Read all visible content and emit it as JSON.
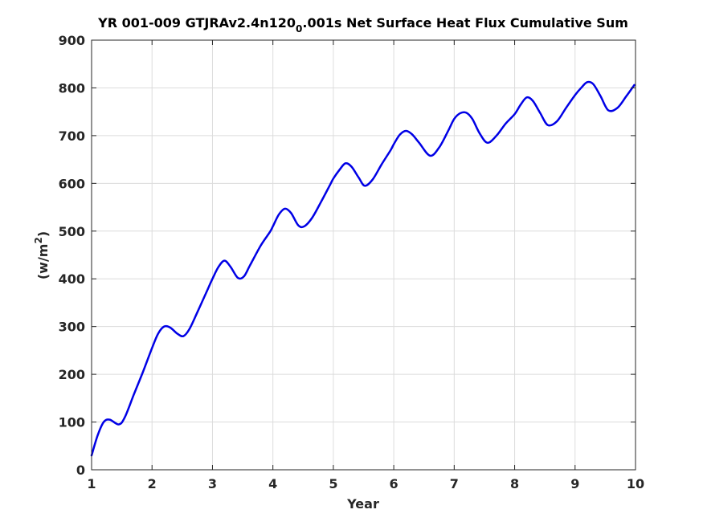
{
  "chart_data": {
    "type": "line",
    "title_main": "YR 001-009 GTJRAv2.4n120",
    "title_subscript": "0",
    "title_rest": ".001s Net Surface Heat Flux  Cumulative Sum",
    "xlabel": "Year",
    "ylabel_main": "(w/m",
    "ylabel_sup": "2",
    "ylabel_close": ")",
    "xlim": [
      1,
      10
    ],
    "ylim": [
      0,
      900
    ],
    "xticks": [
      1,
      2,
      3,
      4,
      5,
      6,
      7,
      8,
      9,
      10
    ],
    "yticks": [
      0,
      100,
      200,
      300,
      400,
      500,
      600,
      700,
      800,
      900
    ],
    "grid": true,
    "line_color": "#0000e6",
    "series": [
      {
        "x": [
          1.0,
          1.1,
          1.2,
          1.3,
          1.45,
          1.55,
          1.7,
          1.85,
          2.0,
          2.1,
          2.2,
          2.3,
          2.42,
          2.52,
          2.62,
          2.75,
          2.9,
          3.0,
          3.1,
          3.2,
          3.3,
          3.42,
          3.52,
          3.62,
          3.8,
          3.95,
          4.0,
          4.1,
          4.2,
          4.3,
          4.42,
          4.52,
          4.65,
          4.8,
          4.95,
          5.0,
          5.1,
          5.2,
          5.3,
          5.42,
          5.52,
          5.65,
          5.8,
          5.95,
          6.0,
          6.1,
          6.2,
          6.3,
          6.42,
          6.6,
          6.75,
          6.9,
          7.0,
          7.1,
          7.2,
          7.3,
          7.42,
          7.55,
          7.7,
          7.85,
          8.0,
          8.1,
          8.2,
          8.3,
          8.42,
          8.55,
          8.7,
          8.85,
          9.0,
          9.1,
          9.2,
          9.3,
          9.42,
          9.55,
          9.7,
          9.85,
          9.98
        ],
        "y": [
          30,
          72,
          100,
          105,
          95,
          110,
          158,
          205,
          255,
          285,
          300,
          298,
          285,
          280,
          295,
          330,
          372,
          400,
          425,
          438,
          425,
          402,
          405,
          428,
          470,
          498,
          510,
          535,
          547,
          538,
          512,
          510,
          528,
          562,
          598,
          610,
          628,
          642,
          635,
          612,
          595,
          608,
          640,
          670,
          682,
          702,
          710,
          703,
          685,
          658,
          675,
          710,
          735,
          747,
          748,
          735,
          705,
          685,
          700,
          725,
          745,
          765,
          780,
          773,
          748,
          722,
          730,
          758,
          785,
          800,
          812,
          808,
          783,
          753,
          758,
          783,
          806
        ]
      }
    ]
  }
}
